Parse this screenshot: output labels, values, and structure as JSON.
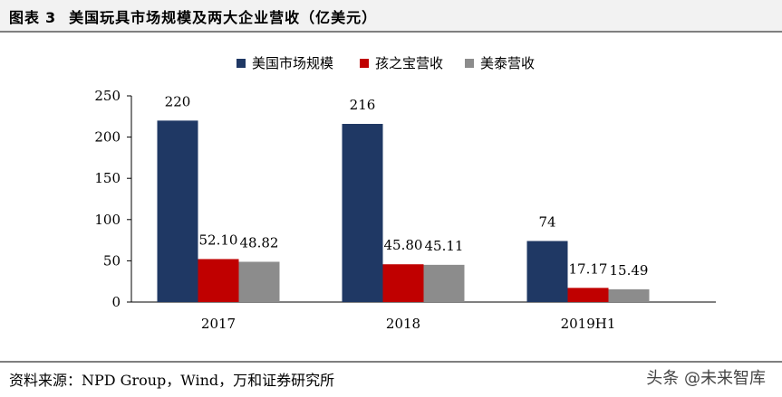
{
  "header": {
    "figure_label": "图表",
    "figure_number": "3",
    "title": "美国玩具市场规模及两大企业营收（亿美元）"
  },
  "footer": {
    "source": "资料来源：NPD Group，Wind，万和证券研究所",
    "watermark": "头条 @未来智库"
  },
  "chart_data": {
    "type": "bar",
    "categories": [
      "2017",
      "2018",
      "2019H1"
    ],
    "series": [
      {
        "name": "美国市场规模",
        "values": [
          220,
          216,
          74
        ],
        "labels": [
          "220",
          "216",
          "74"
        ],
        "color": "#1f3864"
      },
      {
        "name": "孩之宝营收",
        "values": [
          52.1,
          45.8,
          17.17
        ],
        "labels": [
          "52.10",
          "45.80",
          "17.17"
        ],
        "color": "#c00000"
      },
      {
        "name": "美泰营收",
        "values": [
          48.82,
          45.11,
          15.49
        ],
        "labels": [
          "48.82",
          "45.11",
          "15.49"
        ],
        "color": "#8c8c8c"
      }
    ],
    "ylim": [
      0,
      250
    ],
    "yticks": [
      0,
      50,
      100,
      150,
      200,
      250
    ],
    "legend_position": "top",
    "grid": false
  }
}
